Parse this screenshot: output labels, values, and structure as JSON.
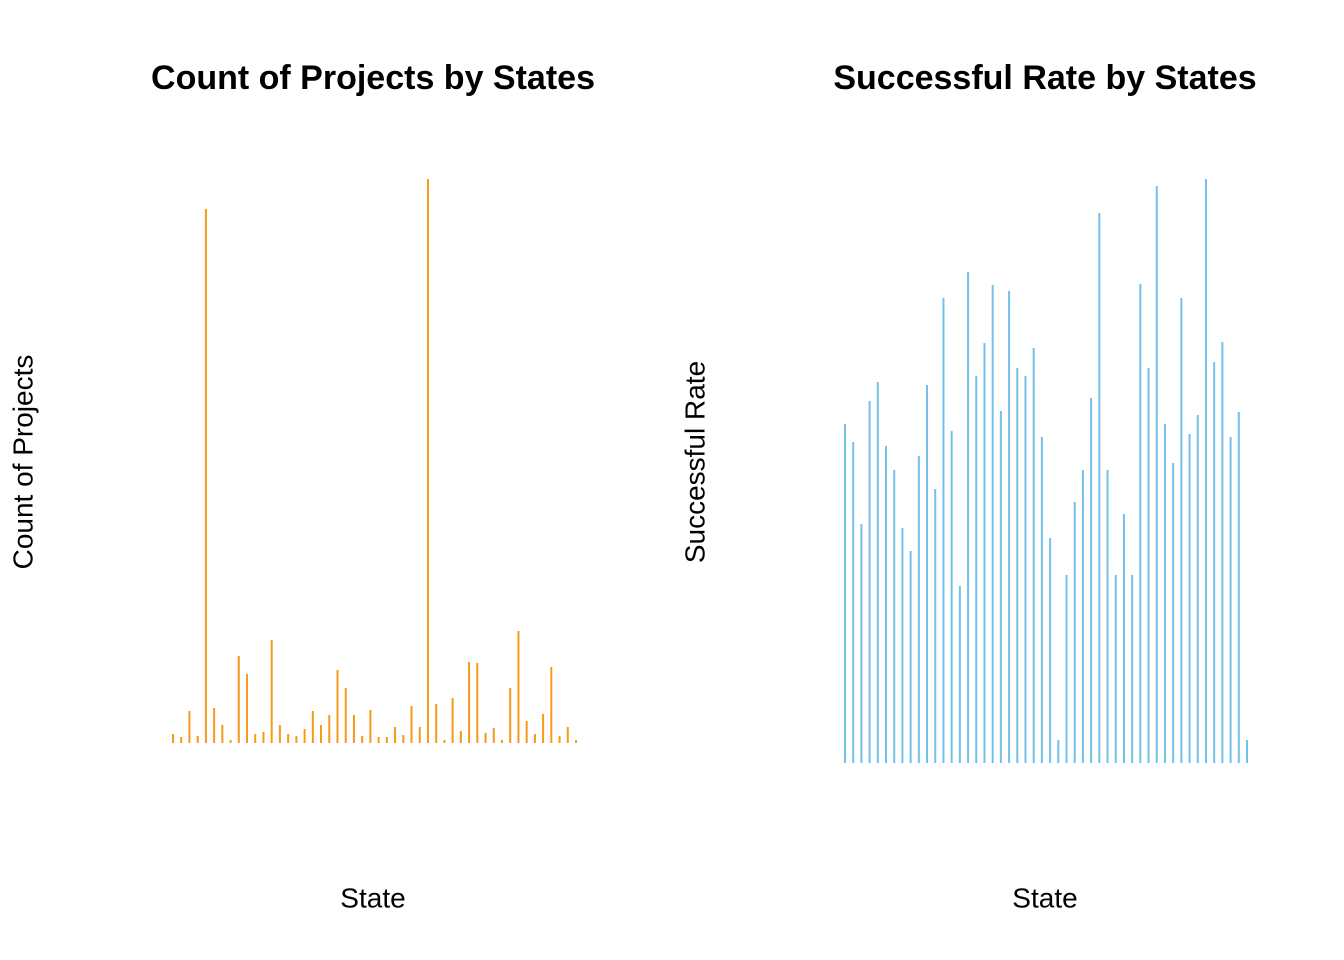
{
  "chart_data": [
    {
      "type": "bar",
      "title": "Count of Projects by States",
      "x_label": "State",
      "y_label": "Count of Projects",
      "color": "#f59a1b",
      "values": [
        9,
        6,
        32,
        7,
        534,
        35,
        18,
        3,
        87,
        69,
        9,
        11,
        103,
        18,
        9,
        7,
        14,
        32,
        18,
        28,
        73,
        55,
        28,
        7,
        33,
        6,
        6,
        16,
        8,
        37,
        16,
        564,
        39,
        3,
        45,
        12,
        81,
        80,
        10,
        15,
        3,
        55,
        112,
        22,
        9,
        29,
        76,
        7,
        16,
        3
      ],
      "ylim": [
        0,
        564
      ]
    },
    {
      "type": "bar",
      "title": "Successful Rate by States",
      "x_label": "State",
      "y_label": "Successful Rate",
      "color": "#74c0e8",
      "values": [
        339,
        321,
        239,
        362,
        381,
        317,
        293,
        235,
        212,
        307,
        378,
        274,
        465,
        332,
        177,
        491,
        387,
        420,
        478,
        352,
        472,
        395,
        387,
        415,
        326,
        225,
        23,
        188,
        261,
        293,
        365,
        550,
        293,
        188,
        249,
        188,
        479,
        395,
        577,
        339,
        300,
        465,
        329,
        348,
        584,
        401,
        421,
        326,
        351,
        23
      ],
      "ylim": [
        0,
        584
      ]
    }
  ]
}
